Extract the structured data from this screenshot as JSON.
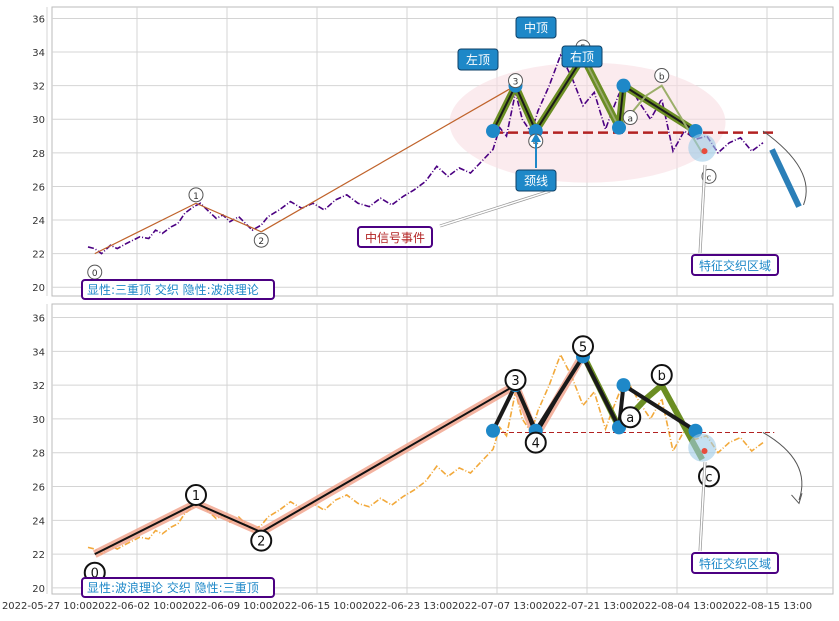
{
  "chart_data": [
    {
      "type": "line",
      "panel": "top",
      "ylim": [
        19.7,
        36.8
      ],
      "yticks": [
        20,
        22,
        24,
        26,
        28,
        30,
        32,
        34,
        36
      ],
      "grid": true,
      "series": [
        {
          "color": "#4b0082",
          "style": "dash-dot",
          "x": [
            0,
            0.3,
            0.6,
            1,
            1.3,
            1.7,
            2,
            2.3,
            2.7,
            3,
            3.3,
            3.7,
            4,
            4.3,
            4.7,
            5,
            5.3,
            5.7,
            6,
            6.3,
            6.7,
            7,
            7.3,
            7.7,
            8,
            8.5,
            9,
            9.5,
            10,
            10.5,
            11,
            11.5,
            12,
            12.5,
            13,
            13.5,
            14,
            14.5,
            15,
            15.5,
            16,
            16.5,
            17,
            17.5,
            18,
            18.3,
            18.6,
            19,
            19.3,
            19.7,
            20,
            20.5,
            21,
            21.5,
            22,
            22.5,
            23,
            23.3,
            23.6,
            24,
            24.5,
            25,
            25.5,
            26,
            26.5,
            27,
            27.5,
            28,
            28.5,
            29,
            29.5,
            30
          ],
          "y": [
            22.4,
            22.3,
            22,
            22.5,
            22.3,
            22.6,
            22.8,
            23.0,
            22.9,
            23.4,
            23.2,
            23.6,
            23.8,
            24.4,
            24.8,
            25.0,
            24.6,
            24.1,
            24.3,
            23.9,
            24.2,
            23.8,
            23.4,
            23.7,
            24.2,
            24.6,
            25.1,
            24.7,
            25.0,
            24.6,
            25.2,
            25.5,
            25.0,
            24.8,
            25.3,
            24.9,
            25.4,
            25.8,
            26.3,
            27.2,
            26.6,
            27.1,
            26.8,
            27.5,
            28.2,
            29.5,
            29.0,
            31.6,
            30.0,
            29.2,
            30.5,
            32.0,
            33.8,
            32.5,
            30.8,
            31.6,
            29.4,
            30.5,
            31.5,
            32.2,
            31.0,
            30.0,
            31.2,
            28.1,
            29.3,
            28.8,
            29.0,
            28.0,
            28.6,
            28.9,
            28.1,
            28.6
          ]
        },
        {
          "name": "",
          "color": "#f2a93b",
          "style": "dash-dot",
          "copy_of": 0
        }
      ]
    }
  ],
  "axes": {
    "x_ticklabels": [
      "2022-05-27 10:00",
      "2022-06-02 10:00",
      "2022-06-09 10:00",
      "2022-06-15 10:00",
      "2022-06-23 13:00",
      "2022-07-07 13:00",
      "2022-07-21 13:00",
      "2022-08-04 13:00",
      "2022-08-15 13:00"
    ],
    "y_ticklabels": [
      "20",
      "22",
      "24",
      "26",
      "28",
      "30",
      "32",
      "34",
      "36"
    ]
  },
  "top": {
    "caption": "显性:三重顶 交织 隐性:波浪理论",
    "labels": {
      "left_top": "左顶",
      "mid_top": "中顶",
      "right_top": "右顶",
      "neckline": "颈线",
      "mid_signal": "中信号事件",
      "zone": "特征交织区域"
    },
    "wave_points": [
      {
        "label": "0",
        "x": 0.3,
        "y": 22.0
      },
      {
        "label": "1",
        "x": 4.8,
        "y": 25.0
      },
      {
        "label": "2",
        "x": 7.7,
        "y": 23.3
      },
      {
        "label": "3",
        "x": 19.0,
        "y": 32.0
      },
      {
        "label": "4",
        "x": 19.9,
        "y": 29.2
      },
      {
        "label": "5",
        "x": 22.0,
        "y": 33.8
      },
      {
        "label": "a",
        "x": 23.6,
        "y": 29.5
      },
      {
        "label": "b",
        "x": 25.2,
        "y": 32.0
      },
      {
        "label": "c",
        "x": 27.3,
        "y": 27.6
      }
    ],
    "neckline_y": 29.2
  },
  "bottom": {
    "caption": "显性:波浪理论 交织 隐性:三重顶",
    "zone_label": "特征交织区域",
    "wave_labels": [
      "0",
      "1",
      "2",
      "3",
      "4",
      "5",
      "a",
      "b",
      "c"
    ]
  },
  "colors": {
    "top_price": "#4b0082",
    "bottom_price": "#f2a93b",
    "olive": "#6b8e23",
    "neck": "#b22222",
    "dot": "#1e88c8",
    "caption_border": "#4b0082",
    "caption_text": "#1e88c8",
    "callout_bg": "#1e88c8"
  }
}
